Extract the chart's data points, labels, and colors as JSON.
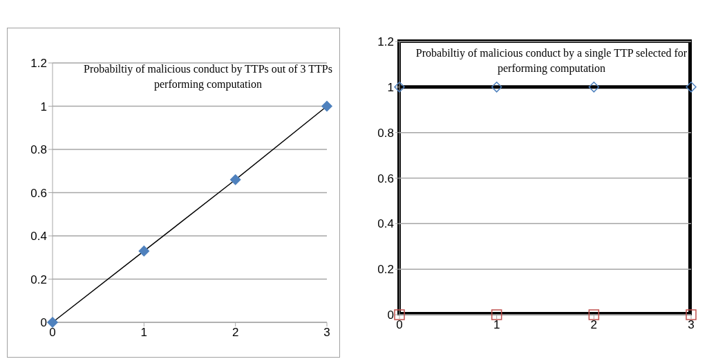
{
  "chart_data": [
    {
      "type": "line",
      "title": "Probabiltiy of malicious conduct by TTPs out of  3 TTPs performing computation",
      "x": [
        0,
        1,
        2,
        3
      ],
      "xlim": [
        0,
        3
      ],
      "xticks": [
        0,
        1,
        2,
        3
      ],
      "ylim": [
        0,
        1.2
      ],
      "yticks": [
        0,
        0.2,
        0.4,
        0.6,
        0.8,
        1,
        1.2
      ],
      "grid": "y",
      "marker": "diamond",
      "legend": false,
      "series": [
        {
          "color": "#4f81bd",
          "values": [
            0,
            0.33,
            0.66,
            1
          ]
        }
      ]
    },
    {
      "type": "scatter",
      "title": "Probabiltiy of malicious conduct by a single TTP selected  for performing computation",
      "x": [
        0,
        1,
        2,
        3
      ],
      "xlim": [
        0,
        3
      ],
      "xticks": [
        0,
        1,
        2,
        3
      ],
      "ylim": [
        0,
        1.2
      ],
      "yticks": [
        0,
        0.2,
        0.4,
        0.6,
        0.8,
        1,
        1.2
      ],
      "grid": "y",
      "legend": false,
      "ref_lines": [
        {
          "axis": "y",
          "value": 1,
          "color": "#000000"
        }
      ],
      "series": [
        {
          "color": "#4f81bd",
          "marker": "diamond",
          "values": [
            1,
            1,
            1,
            1
          ]
        },
        {
          "color": "#c0504d",
          "marker": "square",
          "values": [
            0,
            0,
            0,
            0
          ]
        }
      ]
    }
  ]
}
